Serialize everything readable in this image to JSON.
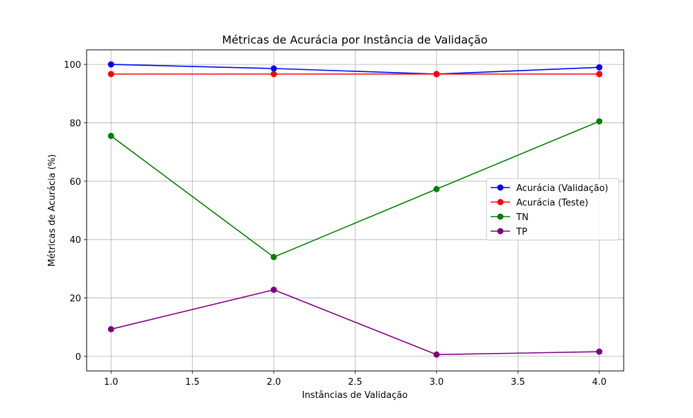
{
  "chart_data": {
    "type": "line",
    "title": "Métricas de Acurácia por Instância de Validação",
    "xlabel": "Instâncias de Validação",
    "ylabel": "Métricas de Acurácia (%)",
    "x": [
      1.0,
      2.0,
      3.0,
      4.0
    ],
    "xlim": [
      0.85,
      4.15
    ],
    "ylim": [
      -5,
      105
    ],
    "xticks": [
      1.0,
      1.5,
      2.0,
      2.5,
      3.0,
      3.5,
      4.0
    ],
    "xtick_labels": [
      "1.0",
      "1.5",
      "2.0",
      "2.5",
      "3.0",
      "3.5",
      "4.0"
    ],
    "yticks": [
      0,
      20,
      40,
      60,
      80,
      100
    ],
    "ytick_labels": [
      "0",
      "20",
      "40",
      "60",
      "80",
      "100"
    ],
    "grid": true,
    "legend_position": "center-right",
    "series": [
      {
        "name": "Acurácia (Validação)",
        "color": "#0000ff",
        "marker": "circle",
        "values": [
          100.0,
          98.6,
          96.7,
          99.0
        ]
      },
      {
        "name": "Acurácia (Teste)",
        "color": "#ff0000",
        "marker": "circle",
        "values": [
          96.7,
          96.7,
          96.7,
          96.7
        ]
      },
      {
        "name": "TN",
        "color": "#008000",
        "marker": "circle",
        "values": [
          75.5,
          34.0,
          57.3,
          80.5
        ]
      },
      {
        "name": "TP",
        "color": "#800080",
        "marker": "circle",
        "values": [
          9.3,
          22.8,
          0.6,
          1.6
        ]
      }
    ]
  }
}
